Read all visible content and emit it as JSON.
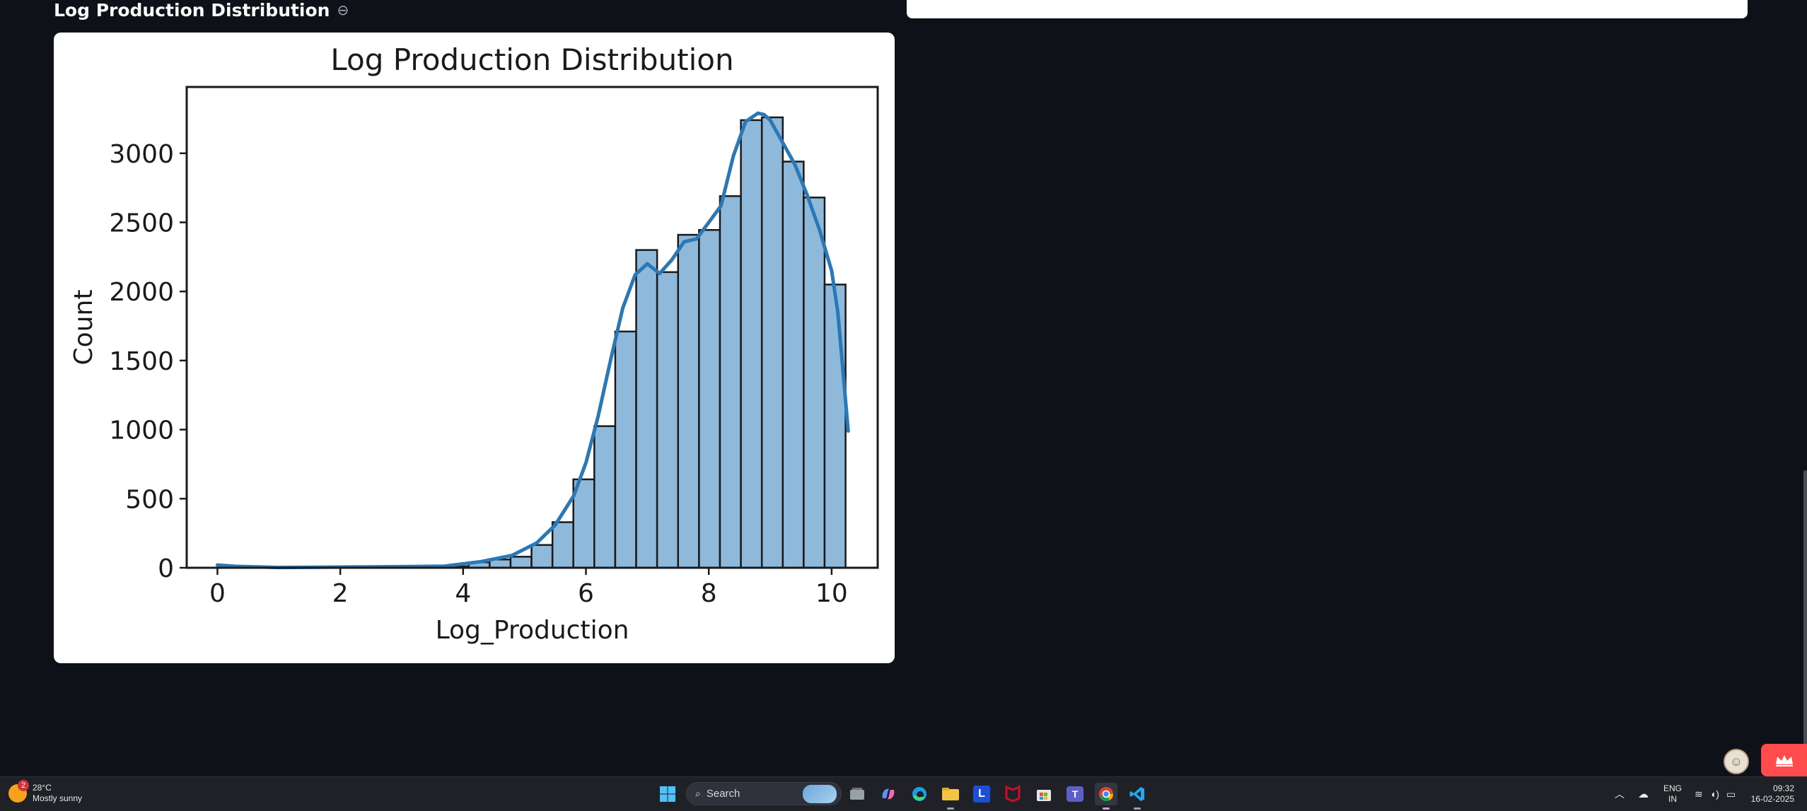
{
  "section": {
    "heading": "Log Production Distribution",
    "link_icon": "link-icon"
  },
  "chart_data": {
    "type": "bar",
    "title": "Log Production Distribution",
    "xlabel": "Log_Production",
    "ylabel": "Count",
    "xlim": [
      -0.5,
      10.75
    ],
    "ylim": [
      0,
      3480
    ],
    "xticks": [
      0,
      2,
      4,
      6,
      8,
      10
    ],
    "yticks": [
      0,
      500,
      1000,
      1500,
      2000,
      2500,
      3000
    ],
    "grid": false,
    "legend": "none",
    "bar_color": "#8fb9da",
    "edge_color": "#1a1a1a",
    "kde_color": "#2a78b5",
    "bin_edges": [
      0.0,
      0.341,
      0.682,
      1.023,
      1.364,
      1.705,
      2.045,
      2.386,
      2.727,
      3.068,
      3.409,
      3.75,
      4.091,
      4.432,
      4.773,
      5.114,
      5.455,
      5.795,
      6.136,
      6.477,
      6.818,
      7.159,
      7.5,
      7.841,
      8.182,
      8.523,
      8.864,
      9.205,
      9.545,
      9.886,
      10.227
    ],
    "values": [
      15,
      3,
      1,
      1,
      1,
      1,
      3,
      5,
      6,
      8,
      5,
      10,
      40,
      60,
      80,
      165,
      330,
      640,
      1025,
      1710,
      2300,
      2140,
      2410,
      2445,
      2690,
      3240,
      3260,
      2940,
      2680,
      2050
    ],
    "kde": {
      "x": [
        0.0,
        0.3,
        1.0,
        2.0,
        3.0,
        3.7,
        4.3,
        4.8,
        5.2,
        5.5,
        5.8,
        6.0,
        6.2,
        6.4,
        6.6,
        6.8,
        7.0,
        7.2,
        7.4,
        7.6,
        7.8,
        8.0,
        8.2,
        8.4,
        8.6,
        8.8,
        8.9,
        9.0,
        9.2,
        9.4,
        9.6,
        9.8,
        10.0,
        10.1,
        10.2,
        10.27
      ],
      "y": [
        20,
        10,
        2,
        5,
        8,
        12,
        45,
        90,
        180,
        310,
        520,
        760,
        1100,
        1500,
        1880,
        2120,
        2200,
        2130,
        2230,
        2360,
        2380,
        2500,
        2620,
        2980,
        3230,
        3290,
        3280,
        3240,
        3080,
        2920,
        2700,
        2450,
        2150,
        1850,
        1350,
        990
      ]
    }
  },
  "taskbar": {
    "weather": {
      "temp": "28°C",
      "condition": "Mostly sunny",
      "badge": "2",
      "icon": "sun-icon"
    },
    "search_placeholder": "Search",
    "apps": [
      "windows-start-icon",
      "task-view-icon",
      "copilot-icon",
      "edge-icon",
      "file-explorer-icon",
      "lens-app-icon",
      "mcafee-icon",
      "microsoft-store-icon",
      "teams-icon",
      "chrome-icon",
      "vscode-icon"
    ],
    "tray": {
      "lang_top": "ENG",
      "lang_bottom": "IN",
      "time": "09:32",
      "date": "16-02-2025"
    }
  },
  "colors": {
    "page_bg": "#0e1117",
    "card_bg": "#ffffff",
    "accent": "#ff4b4b"
  }
}
